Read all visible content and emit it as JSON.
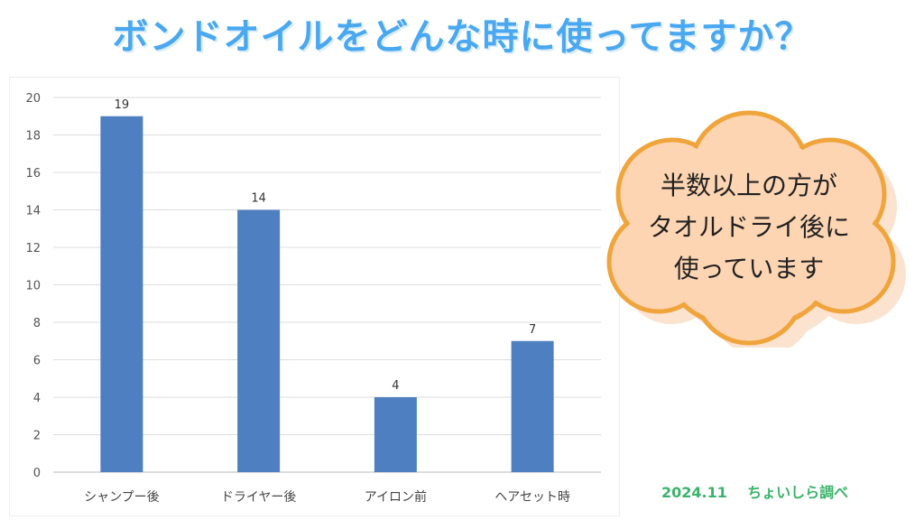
{
  "title": "ボンドオイルをどんな時に使ってますか？",
  "callout": {
    "lines": [
      "半数以上の方が",
      "タオルドライ後に",
      "使っています"
    ]
  },
  "source_note": {
    "date": "2024.11",
    "text": "ちょいしら調べ"
  },
  "colors": {
    "title": "#4aa8f0",
    "bar": "#4e7fc1",
    "callout_fill": "#fdd5b2",
    "callout_stroke": "#f0a43c",
    "source_note": "#3ab46a"
  },
  "chart_data": {
    "type": "bar",
    "categories": [
      "シャンプー後",
      "ドライヤー後",
      "アイロン前",
      "ヘアセット時"
    ],
    "values": [
      19,
      14,
      4,
      7
    ],
    "yticks": [
      0,
      2,
      4,
      6,
      8,
      10,
      12,
      14,
      16,
      18,
      20
    ],
    "ylim": [
      0,
      20
    ],
    "grid": true,
    "data_labels": true,
    "title": "",
    "xlabel": "",
    "ylabel": ""
  }
}
